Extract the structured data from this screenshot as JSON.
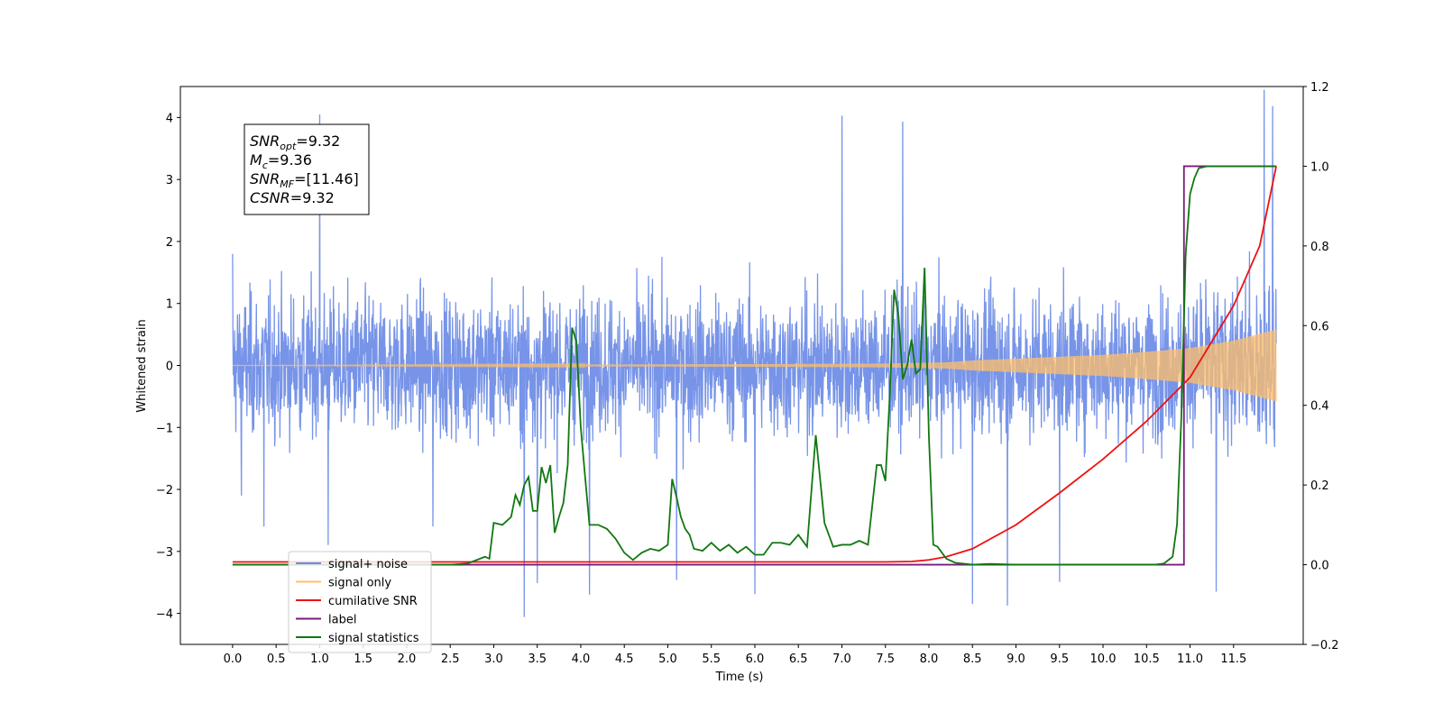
{
  "chart_data": {
    "type": "line",
    "xlabel": "Time (s)",
    "ylabel": "Whitened strain",
    "xlim": [
      -0.6,
      12.3
    ],
    "ylim_left": [
      -4.5,
      4.5
    ],
    "ylim_right": [
      -0.2,
      1.2
    ],
    "x_ticks": [
      "0.0",
      "0.5",
      "1.0",
      "1.5",
      "2.0",
      "2.5",
      "3.0",
      "3.5",
      "4.0",
      "4.5",
      "5.0",
      "5.5",
      "6.0",
      "6.5",
      "7.0",
      "7.5",
      "8.0",
      "8.5",
      "9.0",
      "9.5",
      "10.0",
      "10.5",
      "11.0",
      "11.5"
    ],
    "y_ticks_left": [
      "4",
      "3",
      "2",
      "1",
      "0",
      "−1",
      "−2",
      "−3",
      "−4"
    ],
    "y_ticks_right": [
      "1.2",
      "1.0",
      "0.8",
      "0.6",
      "0.4",
      "0.2",
      "0.0",
      "−0.2"
    ],
    "grid": false,
    "legend_position": "lower-left",
    "annotation": [
      {
        "base": "SNR",
        "sub": "opt",
        "value": "=9.32"
      },
      {
        "base": "M",
        "sub": "c",
        "value": "=9.36"
      },
      {
        "base": "SNR",
        "sub": "MF",
        "value": "=[11.46]"
      },
      {
        "base": "CSNR",
        "sub": "",
        "value": "=9.32"
      }
    ],
    "series": [
      {
        "name": "signal+ noise",
        "axis": "left",
        "color": "#6b8be6",
        "x_range": [
          0.0,
          11.99
        ],
        "amplitude_typical": 1.8,
        "peaks": [
          [
            0.0,
            1.8
          ],
          [
            0.1,
            -2.1
          ],
          [
            0.36,
            -2.6
          ],
          [
            1.0,
            4.05
          ],
          [
            1.1,
            -2.9
          ],
          [
            2.3,
            -2.6
          ],
          [
            3.35,
            -4.05
          ],
          [
            3.5,
            3.7
          ],
          [
            3.5,
            -3.5
          ],
          [
            4.1,
            -3.7
          ],
          [
            5.1,
            -3.45
          ],
          [
            6.0,
            -3.7
          ],
          [
            7.0,
            4.05
          ],
          [
            7.7,
            3.95
          ],
          [
            8.5,
            -3.85
          ],
          [
            8.9,
            -3.8
          ],
          [
            9.5,
            -3.6
          ],
          [
            11.3,
            -3.55
          ],
          [
            11.85,
            4.15
          ],
          [
            11.95,
            3.8
          ]
        ]
      },
      {
        "name": "signal only",
        "axis": "left",
        "color": "#ffbf69",
        "envelope": [
          [
            0.0,
            0.0
          ],
          [
            6.0,
            0.02
          ],
          [
            7.5,
            0.03
          ],
          [
            8.2,
            0.05
          ],
          [
            8.5,
            0.08
          ],
          [
            9.0,
            0.11
          ],
          [
            9.5,
            0.14
          ],
          [
            10.0,
            0.17
          ],
          [
            10.5,
            0.22
          ],
          [
            11.0,
            0.28
          ],
          [
            11.5,
            0.4
          ],
          [
            11.99,
            0.58
          ]
        ]
      },
      {
        "name": "cumilative SNR",
        "axis": "right",
        "color": "#ee1111",
        "x": [
          0.0,
          7.5,
          7.8,
          8.0,
          8.2,
          8.5,
          9.0,
          9.5,
          10.0,
          10.5,
          11.0,
          11.5,
          11.8,
          11.99
        ],
        "y": [
          0.007,
          0.007,
          0.008,
          0.012,
          0.02,
          0.04,
          0.1,
          0.18,
          0.265,
          0.36,
          0.47,
          0.65,
          0.8,
          1.0
        ]
      },
      {
        "name": "label",
        "axis": "right",
        "color": "#7b1a7b",
        "x": [
          0.0,
          10.93,
          10.93,
          11.99
        ],
        "y": [
          0.0,
          0.0,
          1.0,
          1.0
        ]
      },
      {
        "name": "signal statistics",
        "axis": "right",
        "color": "#117711",
        "x": [
          0.0,
          2.5,
          2.7,
          2.9,
          2.95,
          3.0,
          3.1,
          3.2,
          3.25,
          3.3,
          3.35,
          3.4,
          3.45,
          3.5,
          3.55,
          3.6,
          3.65,
          3.7,
          3.75,
          3.8,
          3.85,
          3.9,
          3.95,
          4.0,
          4.05,
          4.1,
          4.15,
          4.2,
          4.3,
          4.4,
          4.5,
          4.6,
          4.7,
          4.8,
          4.9,
          5.0,
          5.05,
          5.1,
          5.15,
          5.2,
          5.25,
          5.3,
          5.4,
          5.5,
          5.6,
          5.7,
          5.8,
          5.9,
          6.0,
          6.1,
          6.2,
          6.3,
          6.4,
          6.5,
          6.55,
          6.6,
          6.7,
          6.8,
          6.9,
          7.0,
          7.1,
          7.2,
          7.3,
          7.4,
          7.45,
          7.5,
          7.55,
          7.6,
          7.65,
          7.7,
          7.75,
          7.8,
          7.85,
          7.9,
          7.95,
          8.0,
          8.05,
          8.1,
          8.2,
          8.3,
          8.5,
          8.7,
          9.0,
          10.0,
          10.6,
          10.7,
          10.8,
          10.85,
          10.9,
          10.95,
          11.0,
          11.05,
          11.1,
          11.2,
          11.3,
          11.5,
          11.8,
          11.99
        ],
        "y": [
          0.0,
          0.0,
          0.003,
          0.02,
          0.015,
          0.105,
          0.1,
          0.12,
          0.175,
          0.15,
          0.2,
          0.22,
          0.135,
          0.135,
          0.245,
          0.205,
          0.25,
          0.08,
          0.12,
          0.155,
          0.25,
          0.595,
          0.56,
          0.345,
          0.22,
          0.1,
          0.1,
          0.1,
          0.09,
          0.065,
          0.03,
          0.012,
          0.03,
          0.04,
          0.035,
          0.05,
          0.215,
          0.17,
          0.12,
          0.09,
          0.075,
          0.04,
          0.035,
          0.055,
          0.035,
          0.05,
          0.03,
          0.045,
          0.025,
          0.025,
          0.055,
          0.055,
          0.05,
          0.075,
          0.06,
          0.045,
          0.325,
          0.105,
          0.045,
          0.05,
          0.05,
          0.06,
          0.05,
          0.25,
          0.25,
          0.21,
          0.425,
          0.69,
          0.625,
          0.465,
          0.5,
          0.565,
          0.48,
          0.49,
          0.745,
          0.32,
          0.05,
          0.045,
          0.015,
          0.005,
          0.0,
          0.002,
          0.0,
          0.0,
          0.0,
          0.003,
          0.02,
          0.1,
          0.37,
          0.78,
          0.93,
          0.97,
          0.995,
          1.0,
          1.0,
          1.0,
          1.0,
          1.0
        ]
      }
    ],
    "legend_entries": [
      {
        "label": "signal+ noise",
        "color": "#6b8be6"
      },
      {
        "label": "signal only",
        "color": "#ffbf69"
      },
      {
        "label": "cumilative SNR",
        "color": "#ee1111"
      },
      {
        "label": "label",
        "color": "#7b1a7b"
      },
      {
        "label": "signal statistics",
        "color": "#117711"
      }
    ]
  }
}
